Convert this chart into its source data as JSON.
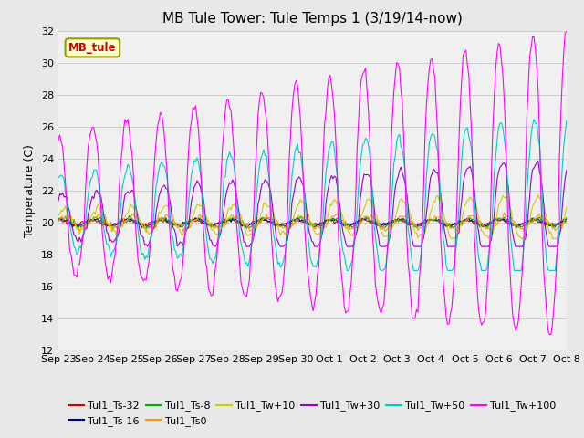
{
  "title": "MB Tule Tower: Tule Temps 1 (3/19/14-now)",
  "ylabel": "Temperature (C)",
  "ylim": [
    12,
    32
  ],
  "yticks": [
    12,
    14,
    16,
    18,
    20,
    22,
    24,
    26,
    28,
    30,
    32
  ],
  "x_labels": [
    "Sep 23",
    "Sep 24",
    "Sep 25",
    "Sep 26",
    "Sep 27",
    "Sep 28",
    "Sep 29",
    "Sep 30",
    "Oct 1",
    "Oct 2",
    "Oct 3",
    "Oct 4",
    "Oct 5",
    "Oct 6",
    "Oct 7",
    "Oct 8"
  ],
  "legend_box_label": "MB_tule",
  "series": [
    {
      "label": "Tul1_Ts-32",
      "color": "#cc0000"
    },
    {
      "label": "Tul1_Ts-16",
      "color": "#000099"
    },
    {
      "label": "Tul1_Ts-8",
      "color": "#00aa00"
    },
    {
      "label": "Tul1_Ts0",
      "color": "#ff9900"
    },
    {
      "label": "Tul1_Tw+10",
      "color": "#cccc00"
    },
    {
      "label": "Tul1_Tw+30",
      "color": "#9900cc"
    },
    {
      "label": "Tul1_Tw+50",
      "color": "#00cccc"
    },
    {
      "label": "Tul1_Tw+100",
      "color": "#ff00ff"
    }
  ],
  "background_color": "#e8e8e8",
  "plot_bg_color": "#f0f0f0",
  "grid_color": "#cccccc",
  "title_fontsize": 11,
  "axis_fontsize": 9,
  "tick_fontsize": 8,
  "legend_fontsize": 8
}
